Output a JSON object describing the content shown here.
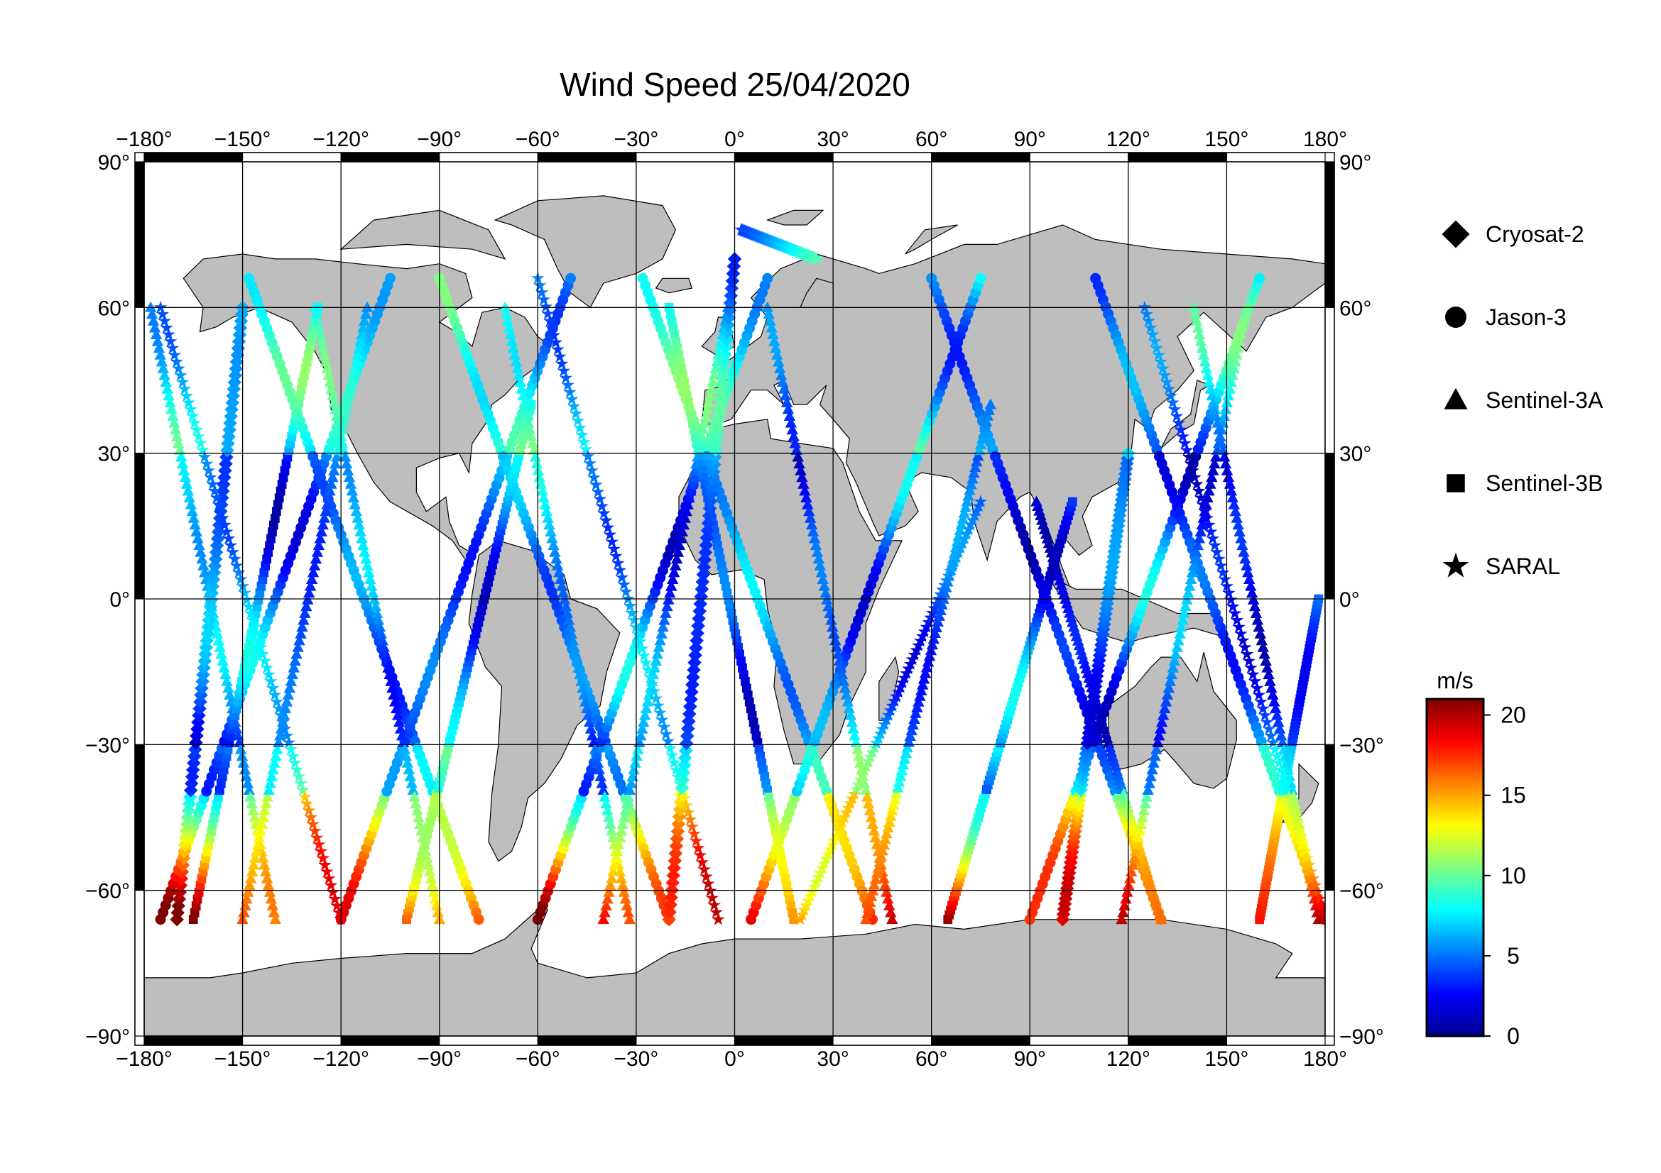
{
  "title": "Wind Speed 25/04/2020",
  "map": {
    "lon_ticks": [
      -180,
      -150,
      -120,
      -90,
      -60,
      -30,
      0,
      30,
      60,
      90,
      120,
      150,
      180
    ],
    "lat_ticks": [
      90,
      60,
      30,
      0,
      -30,
      -60,
      -90
    ],
    "lon_labels": [
      "−180°",
      "−150°",
      "−120°",
      "−90°",
      "−60°",
      "−30°",
      "0°",
      "30°",
      "60°",
      "90°",
      "120°",
      "150°",
      "180°"
    ],
    "lat_labels": [
      "90°",
      "60°",
      "30°",
      "0°",
      "−30°",
      "−60°",
      "−90°"
    ],
    "land_color": "#bebebe",
    "ocean_color": "#ffffff",
    "grid": true
  },
  "legend": {
    "satellites": [
      {
        "name": "Cryosat-2",
        "marker": "diamond"
      },
      {
        "name": "Jason-3",
        "marker": "circle"
      },
      {
        "name": "Sentinel-3A",
        "marker": "triangle"
      },
      {
        "name": "Sentinel-3B",
        "marker": "square"
      },
      {
        "name": "SARAL",
        "marker": "star"
      }
    ]
  },
  "colorbar": {
    "unit": "m/s",
    "min": 0,
    "max": 21,
    "ticks": [
      0,
      5,
      10,
      15,
      20
    ],
    "colormap": [
      "#00008f",
      "#0000ff",
      "#0080ff",
      "#00ffff",
      "#80ff80",
      "#ffff00",
      "#ff8000",
      "#ff0000",
      "#800000"
    ]
  },
  "tracks": [
    {
      "sat": "Jason-3",
      "lon0": -175,
      "lat0": -66,
      "lon1": -105,
      "lat1": 66
    },
    {
      "sat": "Jason-3",
      "lon0": -148,
      "lat0": 66,
      "lon1": -78,
      "lat1": -66
    },
    {
      "sat": "Jason-3",
      "lon0": -120,
      "lat0": -66,
      "lon1": -50,
      "lat1": 66
    },
    {
      "sat": "Jason-3",
      "lon0": -90,
      "lat0": 66,
      "lon1": -20,
      "lat1": -66
    },
    {
      "sat": "Jason-3",
      "lon0": -60,
      "lat0": -66,
      "lon1": 10,
      "lat1": 66
    },
    {
      "sat": "Jason-3",
      "lon0": -28,
      "lat0": 66,
      "lon1": 42,
      "lat1": -66
    },
    {
      "sat": "Jason-3",
      "lon0": 5,
      "lat0": -66,
      "lon1": 75,
      "lat1": 66
    },
    {
      "sat": "Jason-3",
      "lon0": 60,
      "lat0": 66,
      "lon1": 130,
      "lat1": -66
    },
    {
      "sat": "Jason-3",
      "lon0": 90,
      "lat0": -66,
      "lon1": 160,
      "lat1": 66
    },
    {
      "sat": "Jason-3",
      "lon0": 110,
      "lat0": 66,
      "lon1": 180,
      "lat1": -66
    },
    {
      "sat": "Sentinel-3A",
      "lon0": -178,
      "lat0": 60,
      "lon1": -140,
      "lat1": -66
    },
    {
      "sat": "Sentinel-3A",
      "lon0": -150,
      "lat0": -66,
      "lon1": -112,
      "lat1": 60
    },
    {
      "sat": "Sentinel-3A",
      "lon0": -128,
      "lat0": 60,
      "lon1": -90,
      "lat1": -66
    },
    {
      "sat": "Sentinel-3A",
      "lon0": -70,
      "lat0": 60,
      "lon1": -32,
      "lat1": -66
    },
    {
      "sat": "Sentinel-3A",
      "lon0": -40,
      "lat0": -66,
      "lon1": -2,
      "lat1": 60
    },
    {
      "sat": "Sentinel-3A",
      "lon0": 10,
      "lat0": 60,
      "lon1": 48,
      "lat1": -66
    },
    {
      "sat": "Sentinel-3A",
      "lon0": 40,
      "lat0": -66,
      "lon1": 78,
      "lat1": 40
    },
    {
      "sat": "Sentinel-3A",
      "lon0": 92,
      "lat0": 20,
      "lon1": 130,
      "lat1": -66
    },
    {
      "sat": "Sentinel-3A",
      "lon0": 118,
      "lat0": -66,
      "lon1": 156,
      "lat1": 60
    },
    {
      "sat": "Sentinel-3A",
      "lon0": 140,
      "lat0": 60,
      "lon1": 178,
      "lat1": -66
    },
    {
      "sat": "Sentinel-3B",
      "lon0": -165,
      "lat0": -66,
      "lon1": -127,
      "lat1": 60
    },
    {
      "sat": "Sentinel-3B",
      "lon0": -100,
      "lat0": -66,
      "lon1": -62,
      "lat1": 40
    },
    {
      "sat": "Sentinel-3B",
      "lon0": -20,
      "lat0": 60,
      "lon1": 18,
      "lat1": -66
    },
    {
      "sat": "Sentinel-3B",
      "lon0": 65,
      "lat0": -66,
      "lon1": 103,
      "lat1": 20
    },
    {
      "sat": "Sentinel-3B",
      "lon0": 160,
      "lat0": -66,
      "lon1": 178,
      "lat1": 0
    },
    {
      "sat": "Cryosat-2",
      "lon0": -170,
      "lat0": -66,
      "lon1": -150,
      "lat1": 60
    },
    {
      "sat": "Cryosat-2",
      "lon0": -20,
      "lat0": -66,
      "lon1": 0,
      "lat1": 70
    },
    {
      "sat": "Cryosat-2",
      "lon0": 100,
      "lat0": -66,
      "lon1": 120,
      "lat1": 30
    },
    {
      "sat": "SARAL",
      "lon0": -175,
      "lat0": 60,
      "lon1": -120,
      "lat1": -66
    },
    {
      "sat": "SARAL",
      "lon0": -60,
      "lat0": 66,
      "lon1": -5,
      "lat1": -66
    },
    {
      "sat": "SARAL",
      "lon0": 20,
      "lat0": -66,
      "lon1": 75,
      "lat1": 20
    },
    {
      "sat": "SARAL",
      "lon0": 125,
      "lat0": 60,
      "lon1": 180,
      "lat1": -66
    },
    {
      "sat": "SARAL",
      "lon0": 2,
      "lat0": 76,
      "lon1": 25,
      "lat1": 70
    }
  ]
}
